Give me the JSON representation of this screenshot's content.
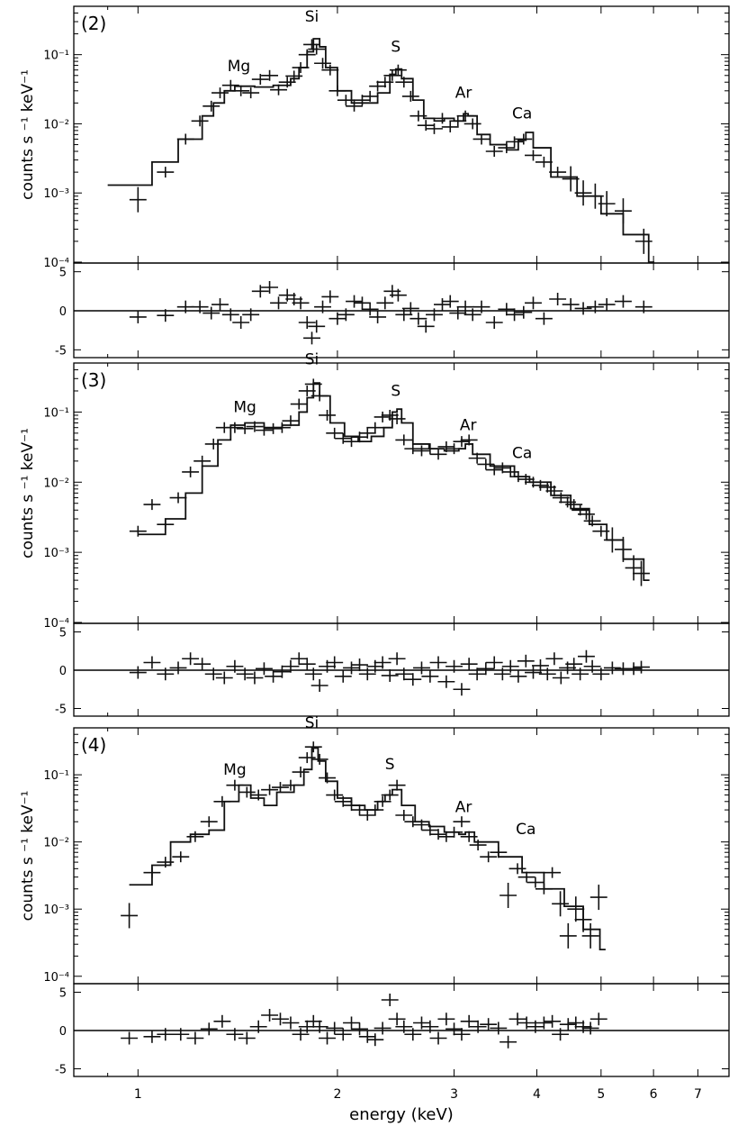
{
  "chart_data": [
    {
      "type": "scatter",
      "panel_label": "(2)",
      "ylabel": "counts s ⁻¹  keV⁻¹",
      "x_scale": "log",
      "y_scale": "log",
      "xlim": [
        0.8,
        7.8
      ],
      "ylim": [
        0.0001,
        0.5
      ],
      "y_tick_labels": [
        "10⁻⁴",
        "10⁻³",
        "10⁻²",
        "10⁻¹"
      ],
      "y_ticks": [
        0.0001,
        0.001,
        0.01,
        0.1
      ],
      "line_labels": [
        {
          "text": "Mg",
          "x": 1.42,
          "y": 0.058
        },
        {
          "text": "Si",
          "x": 1.83,
          "y": 0.3
        },
        {
          "text": "S",
          "x": 2.45,
          "y": 0.11
        },
        {
          "text": "Ar",
          "x": 3.1,
          "y": 0.024
        },
        {
          "text": "Ca",
          "x": 3.8,
          "y": 0.012
        }
      ],
      "model_curve": {
        "x": [
          0.9,
          1.05,
          1.15,
          1.25,
          1.3,
          1.35,
          1.4,
          1.5,
          1.6,
          1.7,
          1.75,
          1.8,
          1.84,
          1.88,
          1.92,
          2.0,
          2.1,
          2.2,
          2.3,
          2.4,
          2.45,
          2.5,
          2.6,
          2.7,
          2.8,
          2.9,
          3.0,
          3.1,
          3.15,
          3.25,
          3.4,
          3.6,
          3.75,
          3.85,
          3.95,
          4.2,
          4.6,
          5.0,
          5.4,
          5.9
        ],
        "y": [
          0.0013,
          0.0028,
          0.006,
          0.013,
          0.02,
          0.03,
          0.035,
          0.034,
          0.036,
          0.045,
          0.065,
          0.11,
          0.17,
          0.13,
          0.065,
          0.03,
          0.02,
          0.02,
          0.028,
          0.052,
          0.062,
          0.045,
          0.022,
          0.012,
          0.011,
          0.012,
          0.011,
          0.014,
          0.013,
          0.007,
          0.005,
          0.0042,
          0.0058,
          0.0075,
          0.0045,
          0.0017,
          0.0009,
          0.0005,
          0.00025,
          0.0001
        ]
      },
      "data_points": {
        "x": [
          1.0,
          1.1,
          1.18,
          1.24,
          1.29,
          1.33,
          1.38,
          1.43,
          1.48,
          1.53,
          1.58,
          1.63,
          1.68,
          1.72,
          1.76,
          1.8,
          1.83,
          1.86,
          1.9,
          1.95,
          2.0,
          2.06,
          2.12,
          2.18,
          2.24,
          2.3,
          2.36,
          2.42,
          2.47,
          2.52,
          2.58,
          2.65,
          2.72,
          2.8,
          2.88,
          2.96,
          3.04,
          3.12,
          3.2,
          3.3,
          3.45,
          3.6,
          3.7,
          3.82,
          3.95,
          4.1,
          4.3,
          4.5,
          4.7,
          4.9,
          5.1,
          5.4,
          5.8
        ],
        "y": [
          0.0008,
          0.002,
          0.006,
          0.011,
          0.018,
          0.028,
          0.036,
          0.03,
          0.028,
          0.044,
          0.05,
          0.031,
          0.04,
          0.049,
          0.065,
          0.1,
          0.14,
          0.12,
          0.075,
          0.06,
          0.03,
          0.022,
          0.018,
          0.022,
          0.025,
          0.035,
          0.04,
          0.05,
          0.06,
          0.04,
          0.025,
          0.013,
          0.0095,
          0.0085,
          0.012,
          0.009,
          0.011,
          0.013,
          0.01,
          0.006,
          0.004,
          0.0045,
          0.0055,
          0.006,
          0.0035,
          0.0028,
          0.002,
          0.0016,
          0.001,
          0.0009,
          0.0007,
          0.00055,
          0.0002
        ],
        "residuals": [
          -0.8,
          -0.6,
          0.5,
          0.5,
          -0.3,
          0.8,
          -0.5,
          -1.5,
          -0.5,
          2.5,
          3.0,
          1.0,
          2.0,
          1.5,
          1.0,
          -1.5,
          -3.5,
          -2.0,
          0.5,
          1.8,
          -1.0,
          -0.5,
          1.2,
          1.0,
          0.2,
          -0.8,
          1.0,
          2.5,
          2.0,
          -0.5,
          0.3,
          -1.0,
          -2.0,
          -0.5,
          0.8,
          1.2,
          -0.3,
          0.5,
          -0.5,
          0.5,
          -1.5,
          0.2,
          -0.5,
          -0.2,
          1.0,
          -1.0,
          1.5,
          0.8,
          0.3,
          0.5,
          0.8,
          1.2,
          0.5
        ]
      }
    },
    {
      "type": "scatter",
      "panel_label": "(3)",
      "ylabel": "counts s ⁻¹  keV⁻¹",
      "x_scale": "log",
      "y_scale": "log",
      "xlim": [
        0.8,
        7.8
      ],
      "ylim": [
        0.0001,
        0.5
      ],
      "y_tick_labels": [
        "10⁻⁴",
        "10⁻³",
        "10⁻²",
        "10⁻¹"
      ],
      "y_ticks": [
        0.0001,
        0.001,
        0.01,
        0.1
      ],
      "line_labels": [
        {
          "text": "Mg",
          "x": 1.45,
          "y": 0.1
        },
        {
          "text": "Si",
          "x": 1.83,
          "y": 0.48
        },
        {
          "text": "S",
          "x": 2.45,
          "y": 0.17
        },
        {
          "text": "Ar",
          "x": 3.15,
          "y": 0.055
        },
        {
          "text": "Ca",
          "x": 3.8,
          "y": 0.022
        }
      ],
      "model_curve": {
        "x": [
          1.0,
          1.1,
          1.18,
          1.25,
          1.32,
          1.38,
          1.45,
          1.55,
          1.65,
          1.75,
          1.8,
          1.84,
          1.88,
          1.95,
          2.05,
          2.15,
          2.25,
          2.35,
          2.42,
          2.46,
          2.5,
          2.6,
          2.75,
          2.9,
          3.05,
          3.12,
          3.2,
          3.4,
          3.7,
          3.9,
          4.2,
          4.5,
          4.8,
          5.1,
          5.4,
          5.8
        ],
        "y": [
          0.0018,
          0.003,
          0.007,
          0.017,
          0.04,
          0.065,
          0.07,
          0.06,
          0.065,
          0.1,
          0.16,
          0.26,
          0.17,
          0.07,
          0.045,
          0.038,
          0.045,
          0.06,
          0.1,
          0.11,
          0.07,
          0.035,
          0.03,
          0.028,
          0.03,
          0.035,
          0.025,
          0.017,
          0.012,
          0.01,
          0.0065,
          0.0042,
          0.0025,
          0.0015,
          0.0008,
          0.0004
        ]
      },
      "data_points": {
        "x": [
          1.0,
          1.05,
          1.1,
          1.15,
          1.2,
          1.25,
          1.3,
          1.35,
          1.4,
          1.45,
          1.5,
          1.55,
          1.6,
          1.65,
          1.7,
          1.75,
          1.8,
          1.84,
          1.88,
          1.93,
          1.98,
          2.04,
          2.1,
          2.16,
          2.22,
          2.28,
          2.34,
          2.4,
          2.46,
          2.52,
          2.6,
          2.68,
          2.76,
          2.84,
          2.92,
          3.0,
          3.08,
          3.16,
          3.25,
          3.35,
          3.45,
          3.55,
          3.65,
          3.75,
          3.85,
          3.95,
          4.05,
          4.15,
          4.25,
          4.35,
          4.45,
          4.55,
          4.65,
          4.75,
          4.85,
          5.0,
          5.2,
          5.4,
          5.6,
          5.75
        ],
        "y": [
          0.002,
          0.0048,
          0.0025,
          0.006,
          0.014,
          0.02,
          0.035,
          0.06,
          0.06,
          0.058,
          0.062,
          0.055,
          0.058,
          0.06,
          0.075,
          0.13,
          0.2,
          0.25,
          0.17,
          0.09,
          0.05,
          0.042,
          0.038,
          0.044,
          0.05,
          0.06,
          0.085,
          0.09,
          0.08,
          0.04,
          0.03,
          0.028,
          0.03,
          0.025,
          0.032,
          0.03,
          0.038,
          0.04,
          0.022,
          0.018,
          0.015,
          0.016,
          0.014,
          0.012,
          0.011,
          0.01,
          0.009,
          0.0085,
          0.0075,
          0.006,
          0.0052,
          0.0048,
          0.004,
          0.0035,
          0.0028,
          0.002,
          0.0015,
          0.0011,
          0.0006,
          0.0005
        ],
        "residuals": [
          -0.3,
          1.0,
          -0.5,
          0.3,
          1.5,
          0.8,
          -0.5,
          -1.0,
          0.5,
          -0.5,
          -1.0,
          0.2,
          -0.8,
          -0.2,
          0.5,
          1.5,
          0.8,
          -0.5,
          -2.0,
          0.5,
          1.0,
          -0.8,
          0.3,
          0.7,
          -0.5,
          0.5,
          1.0,
          -0.7,
          1.5,
          -0.5,
          -1.2,
          0.3,
          -0.8,
          1.0,
          -1.5,
          0.5,
          -2.5,
          0.8,
          -0.5,
          0.2,
          1.0,
          -0.5,
          0.5,
          -0.8,
          1.2,
          -0.3,
          0.6,
          -0.5,
          1.5,
          -1.0,
          0.3,
          0.8,
          -0.5,
          1.8,
          0.5,
          -0.5,
          0.3,
          0.2,
          0.2,
          0.4
        ]
      }
    },
    {
      "type": "scatter",
      "panel_label": "(4)",
      "ylabel": "counts s ⁻¹  keV⁻¹",
      "x_scale": "log",
      "y_scale": "log",
      "xlim": [
        0.8,
        7.8
      ],
      "ylim": [
        8e-05,
        0.5
      ],
      "y_tick_labels": [
        "10⁻⁴",
        "10⁻³",
        "10⁻²",
        "10⁻¹"
      ],
      "y_ticks": [
        0.0001,
        0.001,
        0.01,
        0.1
      ],
      "x_tick_labels": [
        "1",
        "2",
        "3",
        "4",
        "5",
        "6",
        "7"
      ],
      "x_ticks": [
        1,
        2,
        3,
        4,
        5,
        6,
        7
      ],
      "xlabel": "energy (keV)",
      "line_labels": [
        {
          "text": "Mg",
          "x": 1.4,
          "y": 0.1
        },
        {
          "text": "Si",
          "x": 1.83,
          "y": 0.5
        },
        {
          "text": "S",
          "x": 2.4,
          "y": 0.12
        },
        {
          "text": "Ar",
          "x": 3.1,
          "y": 0.028
        },
        {
          "text": "Ca",
          "x": 3.85,
          "y": 0.013
        }
      ],
      "model_curve": {
        "x": [
          0.97,
          1.05,
          1.12,
          1.2,
          1.28,
          1.35,
          1.42,
          1.48,
          1.55,
          1.62,
          1.72,
          1.78,
          1.83,
          1.87,
          1.92,
          2.0,
          2.1,
          2.2,
          2.3,
          2.36,
          2.42,
          2.5,
          2.62,
          2.75,
          2.9,
          3.05,
          3.12,
          3.22,
          3.5,
          3.8,
          4.1,
          4.4,
          4.7,
          4.98
        ],
        "y": [
          0.0023,
          0.0045,
          0.01,
          0.013,
          0.015,
          0.04,
          0.07,
          0.045,
          0.035,
          0.055,
          0.07,
          0.12,
          0.25,
          0.16,
          0.08,
          0.045,
          0.035,
          0.03,
          0.04,
          0.05,
          0.06,
          0.035,
          0.02,
          0.017,
          0.014,
          0.013,
          0.014,
          0.01,
          0.006,
          0.0035,
          0.002,
          0.0011,
          0.0005,
          0.00025
        ]
      },
      "data_points": {
        "x": [
          0.97,
          1.05,
          1.1,
          1.16,
          1.22,
          1.28,
          1.34,
          1.4,
          1.46,
          1.52,
          1.58,
          1.64,
          1.7,
          1.76,
          1.8,
          1.84,
          1.88,
          1.93,
          1.98,
          2.04,
          2.1,
          2.16,
          2.22,
          2.28,
          2.34,
          2.4,
          2.46,
          2.52,
          2.6,
          2.68,
          2.76,
          2.84,
          2.92,
          3.0,
          3.08,
          3.16,
          3.26,
          3.38,
          3.5,
          3.62,
          3.74,
          3.86,
          3.98,
          4.1,
          4.22,
          4.34,
          4.46,
          4.58,
          4.7,
          4.82,
          4.96
        ],
        "y": [
          0.0008,
          0.0035,
          0.005,
          0.006,
          0.012,
          0.02,
          0.04,
          0.07,
          0.055,
          0.05,
          0.06,
          0.065,
          0.07,
          0.11,
          0.18,
          0.26,
          0.17,
          0.09,
          0.05,
          0.04,
          0.035,
          0.03,
          0.025,
          0.03,
          0.04,
          0.05,
          0.07,
          0.025,
          0.02,
          0.018,
          0.015,
          0.013,
          0.012,
          0.014,
          0.02,
          0.012,
          0.009,
          0.006,
          0.007,
          0.0016,
          0.004,
          0.003,
          0.0025,
          0.002,
          0.0035,
          0.0012,
          0.0004,
          0.001,
          0.0007,
          0.0004,
          0.0015
        ],
        "residuals": [
          -1.0,
          -0.8,
          -0.5,
          -0.5,
          -1.0,
          0.2,
          1.2,
          -0.5,
          -1.0,
          0.5,
          2.0,
          1.5,
          1.0,
          -0.5,
          0.5,
          1.2,
          0.5,
          -1.0,
          0.3,
          -0.5,
          1.0,
          0.2,
          -0.8,
          -1.2,
          0.3,
          4.0,
          1.5,
          0.5,
          -0.5,
          1.0,
          0.5,
          -1.0,
          1.5,
          0.2,
          -0.5,
          1.2,
          0.5,
          0.8,
          0.3,
          -1.5,
          1.5,
          1.0,
          0.5,
          1.0,
          1.2,
          -0.5,
          0.8,
          1.0,
          0.5,
          0.3,
          1.5
        ]
      }
    }
  ],
  "residual_axis": {
    "ylim": [
      -6,
      6
    ],
    "y_ticks": [
      -5,
      0,
      5
    ],
    "y_tick_labels": [
      "-5",
      "0",
      "5"
    ]
  }
}
